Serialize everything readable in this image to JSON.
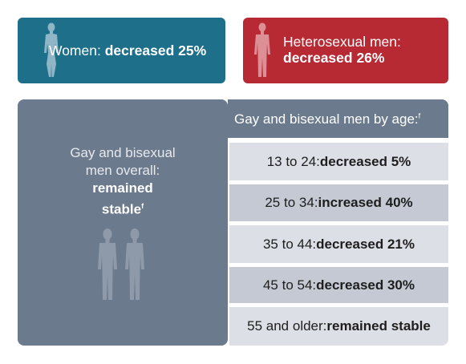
{
  "women": {
    "label": "Women: ",
    "value": "decreased 25%",
    "icon": "female-figure-icon",
    "bg": "#1d6f8a"
  },
  "hetero_men": {
    "label": "Heterosexual men:",
    "value": "decreased 26%",
    "icon": "male-figure-icon",
    "bg": "#b72a34"
  },
  "gbm_overall": {
    "line1": "Gay and bisexual",
    "line2": "men overall:",
    "value1": "remained",
    "value2": "stable",
    "footnote": "f",
    "icon": "two-male-figures-icon",
    "bg": "#6b7a8c"
  },
  "by_age": {
    "header": "Gay and bisexual men by age:",
    "header_footnote": "f",
    "rows": [
      {
        "label": "13 to 24: ",
        "value": "decreased 5%"
      },
      {
        "label": "25 to 34: ",
        "value": "increased 40%"
      },
      {
        "label": "35 to 44: ",
        "value": "decreased 21%"
      },
      {
        "label": "45 to 54: ",
        "value": "decreased 30%"
      },
      {
        "label": "55 and older: ",
        "value": "remained stable"
      }
    ]
  }
}
